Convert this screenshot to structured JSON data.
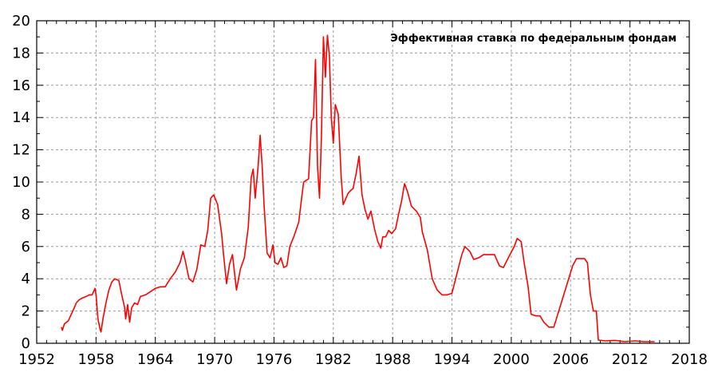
{
  "chart_data": {
    "type": "line",
    "title": "",
    "xlabel": "",
    "ylabel": "",
    "xlim": [
      1952,
      2018
    ],
    "ylim": [
      0,
      20
    ],
    "grid": true,
    "legend_position": "top-right",
    "x_ticks": [
      "1952",
      "1958",
      "1964",
      "1970",
      "1976",
      "1982",
      "1988",
      "1994",
      "2000",
      "2006",
      "2012",
      "2018"
    ],
    "y_ticks": [
      "0",
      "2",
      "4",
      "6",
      "8",
      "10",
      "12",
      "14",
      "16",
      "18",
      "20"
    ],
    "series": [
      {
        "name": "Эффективная ставка по федеральным фондам",
        "color": "#ff0000",
        "points": [
          [
            1954.5,
            1.0
          ],
          [
            1954.6,
            0.8
          ],
          [
            1954.8,
            1.2
          ],
          [
            1955.0,
            1.3
          ],
          [
            1955.2,
            1.4
          ],
          [
            1955.5,
            1.8
          ],
          [
            1955.8,
            2.2
          ],
          [
            1956.0,
            2.5
          ],
          [
            1956.3,
            2.7
          ],
          [
            1956.6,
            2.8
          ],
          [
            1957.0,
            2.9
          ],
          [
            1957.3,
            3.0
          ],
          [
            1957.6,
            3.0
          ],
          [
            1957.9,
            3.4
          ],
          [
            1958.0,
            3.0
          ],
          [
            1958.2,
            1.5
          ],
          [
            1958.4,
            0.9
          ],
          [
            1958.5,
            0.7
          ],
          [
            1958.7,
            1.5
          ],
          [
            1959.0,
            2.5
          ],
          [
            1959.3,
            3.3
          ],
          [
            1959.6,
            3.8
          ],
          [
            1959.9,
            4.0
          ],
          [
            1960.3,
            3.9
          ],
          [
            1960.6,
            3.0
          ],
          [
            1960.9,
            2.2
          ],
          [
            1961.0,
            1.5
          ],
          [
            1961.2,
            2.4
          ],
          [
            1961.4,
            1.3
          ],
          [
            1961.6,
            2.2
          ],
          [
            1961.9,
            2.5
          ],
          [
            1962.2,
            2.4
          ],
          [
            1962.5,
            2.9
          ],
          [
            1963.0,
            3.0
          ],
          [
            1963.5,
            3.2
          ],
          [
            1964.0,
            3.4
          ],
          [
            1964.5,
            3.5
          ],
          [
            1965.0,
            3.5
          ],
          [
            1965.5,
            4.0
          ],
          [
            1966.0,
            4.4
          ],
          [
            1966.5,
            5.0
          ],
          [
            1966.8,
            5.7
          ],
          [
            1967.0,
            5.2
          ],
          [
            1967.4,
            4.0
          ],
          [
            1967.8,
            3.8
          ],
          [
            1968.2,
            4.6
          ],
          [
            1968.6,
            6.1
          ],
          [
            1969.0,
            6.0
          ],
          [
            1969.3,
            7.0
          ],
          [
            1969.6,
            9.0
          ],
          [
            1969.9,
            9.2
          ],
          [
            1970.3,
            8.6
          ],
          [
            1970.7,
            6.8
          ],
          [
            1970.9,
            5.5
          ],
          [
            1971.2,
            3.7
          ],
          [
            1971.5,
            4.9
          ],
          [
            1971.8,
            5.5
          ],
          [
            1972.0,
            4.4
          ],
          [
            1972.2,
            3.3
          ],
          [
            1972.6,
            4.6
          ],
          [
            1973.0,
            5.3
          ],
          [
            1973.4,
            7.2
          ],
          [
            1973.7,
            10.3
          ],
          [
            1973.9,
            10.8
          ],
          [
            1974.1,
            9.0
          ],
          [
            1974.4,
            11.0
          ],
          [
            1974.6,
            12.9
          ],
          [
            1974.8,
            11.0
          ],
          [
            1975.0,
            8.5
          ],
          [
            1975.3,
            5.6
          ],
          [
            1975.6,
            5.3
          ],
          [
            1975.9,
            6.1
          ],
          [
            1976.1,
            5.0
          ],
          [
            1976.4,
            4.9
          ],
          [
            1976.7,
            5.3
          ],
          [
            1977.0,
            4.7
          ],
          [
            1977.3,
            4.8
          ],
          [
            1977.6,
            6.0
          ],
          [
            1978.0,
            6.6
          ],
          [
            1978.5,
            7.5
          ],
          [
            1979.0,
            10.0
          ],
          [
            1979.5,
            10.2
          ],
          [
            1979.8,
            13.8
          ],
          [
            1980.0,
            14.0
          ],
          [
            1980.2,
            17.6
          ],
          [
            1980.4,
            11.0
          ],
          [
            1980.6,
            9.0
          ],
          [
            1980.8,
            12.8
          ],
          [
            1981.0,
            19.0
          ],
          [
            1981.2,
            16.5
          ],
          [
            1981.4,
            19.1
          ],
          [
            1981.6,
            17.8
          ],
          [
            1981.8,
            14.0
          ],
          [
            1982.0,
            12.4
          ],
          [
            1982.2,
            14.8
          ],
          [
            1982.5,
            14.2
          ],
          [
            1982.8,
            10.3
          ],
          [
            1983.0,
            8.6
          ],
          [
            1983.5,
            9.3
          ],
          [
            1983.8,
            9.5
          ],
          [
            1984.0,
            9.6
          ],
          [
            1984.3,
            10.5
          ],
          [
            1984.6,
            11.6
          ],
          [
            1984.9,
            9.2
          ],
          [
            1985.2,
            8.3
          ],
          [
            1985.5,
            7.7
          ],
          [
            1985.8,
            8.2
          ],
          [
            1986.2,
            7.0
          ],
          [
            1986.5,
            6.3
          ],
          [
            1986.8,
            5.9
          ],
          [
            1987.0,
            6.6
          ],
          [
            1987.3,
            6.6
          ],
          [
            1987.6,
            7.0
          ],
          [
            1987.9,
            6.8
          ],
          [
            1988.3,
            7.1
          ],
          [
            1988.6,
            8.0
          ],
          [
            1988.9,
            8.8
          ],
          [
            1989.2,
            9.9
          ],
          [
            1989.5,
            9.4
          ],
          [
            1989.9,
            8.5
          ],
          [
            1990.4,
            8.2
          ],
          [
            1990.8,
            7.8
          ],
          [
            1991.0,
            6.9
          ],
          [
            1991.5,
            5.8
          ],
          [
            1992.0,
            4.0
          ],
          [
            1992.5,
            3.3
          ],
          [
            1993.0,
            3.0
          ],
          [
            1993.5,
            3.0
          ],
          [
            1994.0,
            3.1
          ],
          [
            1994.5,
            4.3
          ],
          [
            1995.0,
            5.5
          ],
          [
            1995.3,
            6.0
          ],
          [
            1995.8,
            5.7
          ],
          [
            1996.2,
            5.2
          ],
          [
            1996.7,
            5.3
          ],
          [
            1997.2,
            5.5
          ],
          [
            1997.7,
            5.5
          ],
          [
            1998.3,
            5.5
          ],
          [
            1998.8,
            4.8
          ],
          [
            1999.2,
            4.7
          ],
          [
            1999.7,
            5.3
          ],
          [
            2000.3,
            6.0
          ],
          [
            2000.6,
            6.5
          ],
          [
            2001.0,
            6.3
          ],
          [
            2001.3,
            5.0
          ],
          [
            2001.7,
            3.5
          ],
          [
            2002.0,
            1.8
          ],
          [
            2002.5,
            1.7
          ],
          [
            2002.9,
            1.7
          ],
          [
            2003.3,
            1.3
          ],
          [
            2003.8,
            1.0
          ],
          [
            2004.3,
            1.0
          ],
          [
            2004.7,
            1.8
          ],
          [
            2005.2,
            2.8
          ],
          [
            2005.7,
            3.8
          ],
          [
            2006.2,
            4.8
          ],
          [
            2006.6,
            5.25
          ],
          [
            2007.0,
            5.25
          ],
          [
            2007.4,
            5.25
          ],
          [
            2007.7,
            5.0
          ],
          [
            2008.0,
            3.0
          ],
          [
            2008.3,
            2.0
          ],
          [
            2008.6,
            2.0
          ],
          [
            2008.8,
            0.2
          ],
          [
            2009.5,
            0.15
          ],
          [
            2010.5,
            0.18
          ],
          [
            2011.5,
            0.1
          ],
          [
            2012.5,
            0.15
          ],
          [
            2013.5,
            0.1
          ],
          [
            2014.5,
            0.1
          ]
        ]
      }
    ]
  }
}
